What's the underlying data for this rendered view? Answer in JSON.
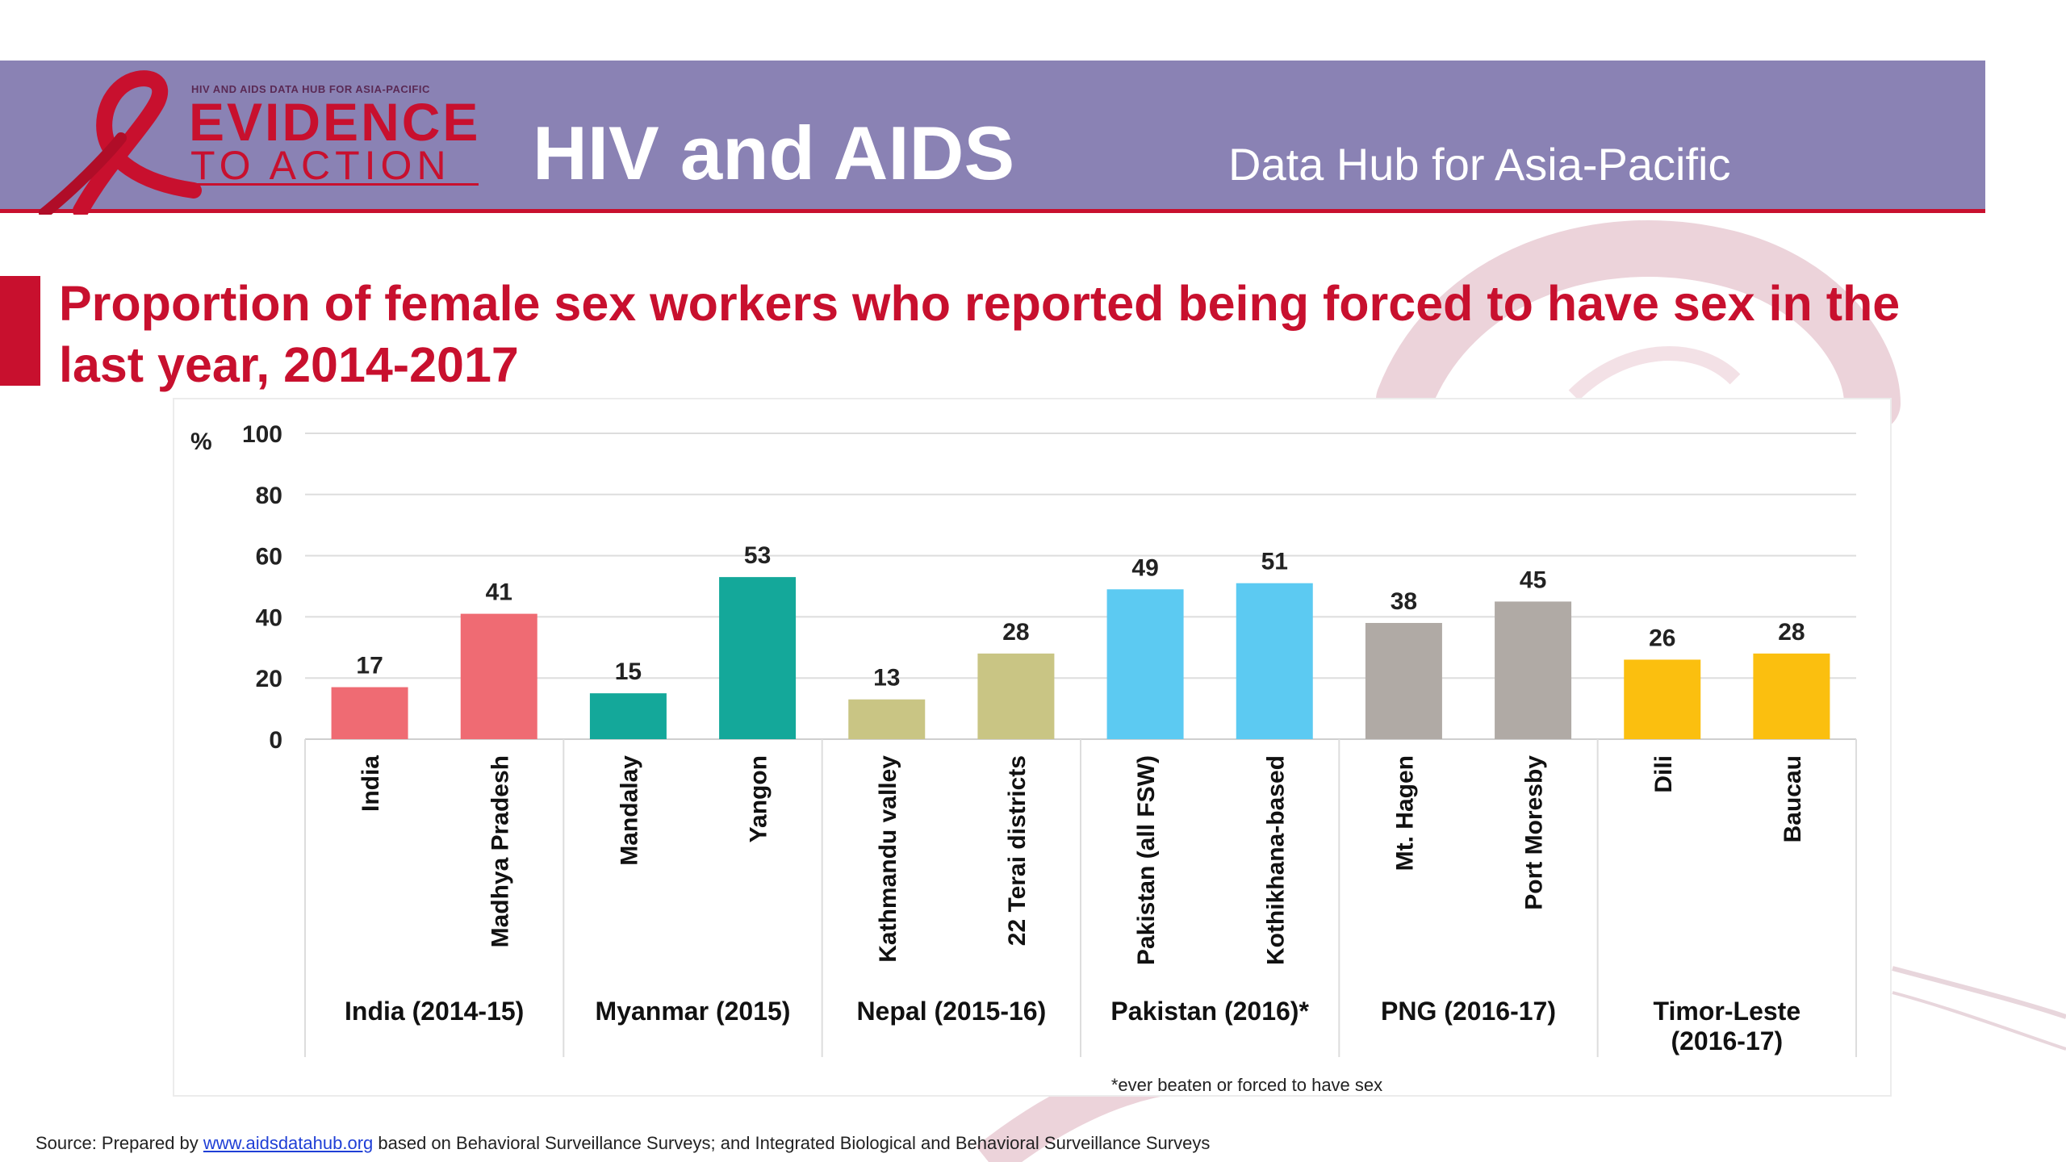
{
  "header": {
    "logo_small_text": "HIV AND AIDS DATA HUB FOR ASIA-PACIFIC",
    "logo_line1": "EVIDENCE",
    "logo_line2": "TO ACTION",
    "title": "HIV and AIDS",
    "subtitle": "Data Hub for Asia-Pacific",
    "banner_color": "#8a82b4",
    "accent_color": "#c8102e"
  },
  "chart_data": {
    "type": "bar",
    "title": "Proportion of female sex workers who reported being forced to have sex in the last year, 2014-2017",
    "ylabel": "%",
    "xlabel": "",
    "ylim": [
      0,
      100
    ],
    "yticks": [
      0,
      20,
      40,
      60,
      80,
      100
    ],
    "grid": true,
    "categories": [
      "India",
      "Madhya Pradesh",
      "Mandalay",
      "Yangon",
      "Kathmandu valley",
      "22 Terai districts",
      "Pakistan (all FSW)",
      "Kothikhana-based",
      "Mt. Hagen",
      "Port Moresby",
      "Dili",
      "Baucau"
    ],
    "values": [
      17,
      41,
      15,
      53,
      13,
      28,
      49,
      51,
      38,
      45,
      26,
      28
    ],
    "colors": [
      "#ef6b73",
      "#ef6b73",
      "#14a89a",
      "#14a89a",
      "#c9c584",
      "#c9c584",
      "#5ccaf2",
      "#5ccaf2",
      "#b0aaa5",
      "#b0aaa5",
      "#fbbf0f",
      "#fbbf0f"
    ],
    "groups": [
      {
        "label": "India (2014-15)",
        "lines": [
          "India (2014-15)"
        ]
      },
      {
        "label": "Myanmar (2015)",
        "lines": [
          "Myanmar (2015)"
        ]
      },
      {
        "label": "Nepal (2015-16)",
        "lines": [
          "Nepal (2015-16)"
        ]
      },
      {
        "label": "Pakistan (2016)*",
        "lines": [
          "Pakistan (2016)*"
        ]
      },
      {
        "label": "PNG (2016-17)",
        "lines": [
          "PNG (2016-17)"
        ]
      },
      {
        "label": "Timor-Leste (2016-17)",
        "lines": [
          "Timor-Leste",
          "(2016-17)"
        ]
      }
    ],
    "footnote": "*ever beaten or forced to have sex"
  },
  "source": {
    "prefix": "Source: Prepared by ",
    "link_text": "www.aidsdatahub.org",
    "suffix": " based on Behavioral Surveillance Surveys; and Integrated Biological and Behavioral Surveillance Surveys"
  }
}
